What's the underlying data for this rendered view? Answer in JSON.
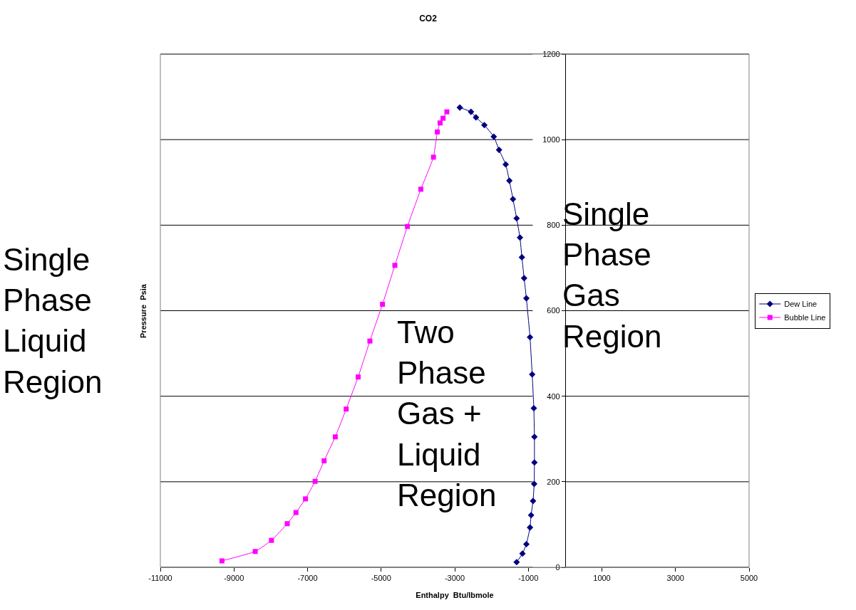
{
  "chart_data": {
    "type": "line",
    "title": "CO2",
    "xlabel": "Enthalpy  Btu/lbmole",
    "ylabel": "Pressure  Psia",
    "xlim": [
      -11000,
      5000
    ],
    "xticks": [
      -11000,
      -9000,
      -7000,
      -5000,
      -3000,
      -1000,
      1000,
      3000,
      5000
    ],
    "ylim": [
      0,
      1200
    ],
    "yticks": [
      0,
      200,
      400,
      600,
      800,
      1000,
      1200
    ],
    "grid": "y",
    "legend": "right",
    "annotations": [
      "Single Phase Liquid Region",
      "Two Phase Gas + Liquid Region",
      "Single Phase Gas Region"
    ],
    "series": [
      {
        "name": "Dew Line",
        "color": "#000080",
        "marker": "diamond",
        "x": [
          -2862,
          -2559,
          -2423,
          -2195,
          -1939,
          -1795,
          -1614,
          -1515,
          -1417,
          -1318,
          -1227,
          -1175,
          -1114,
          -1053,
          -954,
          -895,
          -850,
          -834,
          -834,
          -841,
          -872,
          -924,
          -954,
          -1053,
          -1159,
          -1318
        ],
        "values": [
          1075,
          1065,
          1052,
          1034,
          1007,
          976,
          942,
          904,
          861,
          816,
          771,
          725,
          676,
          629,
          538,
          451,
          372,
          305,
          245,
          195,
          155,
          122,
          93,
          54,
          32,
          12
        ]
      },
      {
        "name": "Bubble Line",
        "color": "#ff00ff",
        "marker": "square",
        "x": [
          -9327,
          -8423,
          -7980,
          -7552,
          -7315,
          -7056,
          -6795,
          -6550,
          -6246,
          -5950,
          -5625,
          -5306,
          -4963,
          -4627,
          -4286,
          -3921,
          -3578,
          -3473,
          -3398,
          -3317,
          -3214
        ],
        "values": [
          15,
          37,
          63,
          102,
          128,
          160,
          201,
          249,
          305,
          370,
          445,
          529,
          615,
          706,
          797,
          884,
          959,
          1018,
          1039,
          1050,
          1065
        ]
      }
    ]
  }
}
